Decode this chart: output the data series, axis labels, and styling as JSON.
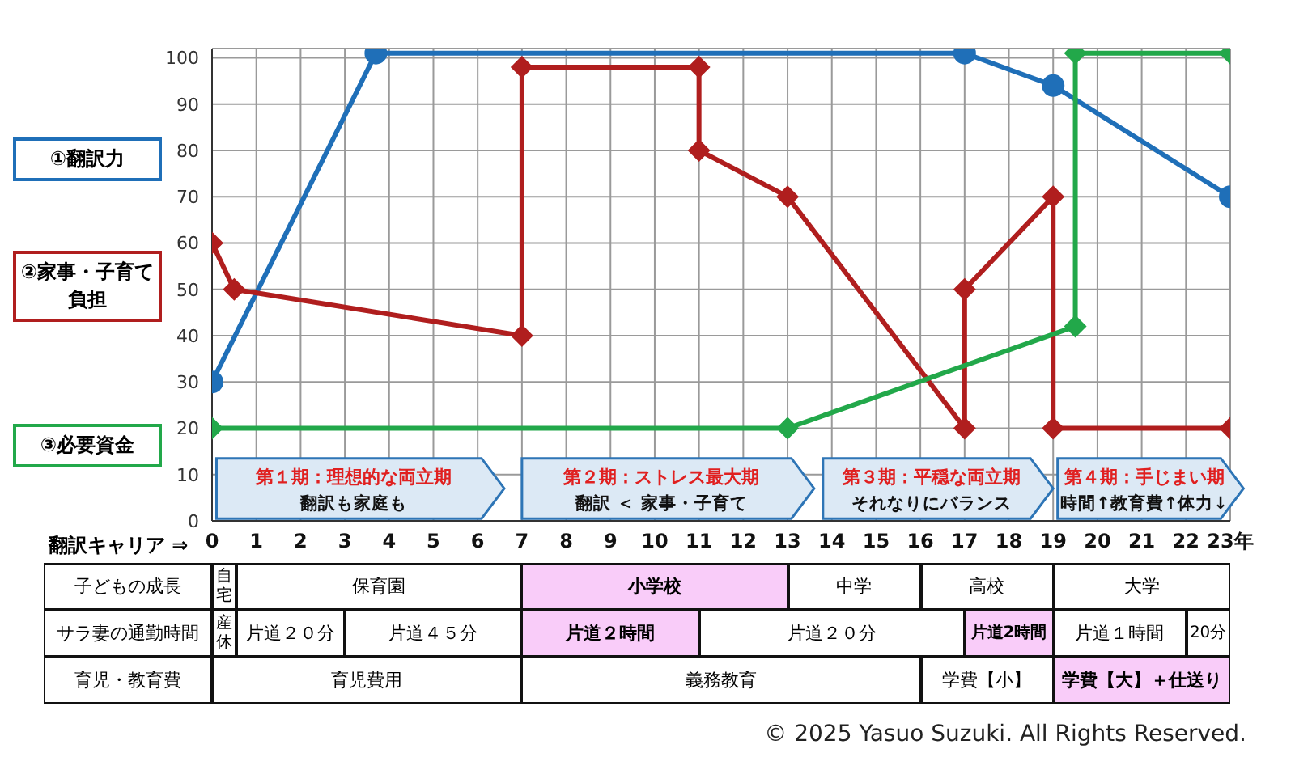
{
  "chart_data": {
    "type": "line",
    "xlabel": "翻訳キャリア ⇒",
    "xlim": [
      0,
      23
    ],
    "xticks": [
      0,
      1,
      2,
      3,
      4,
      5,
      6,
      7,
      8,
      9,
      10,
      11,
      12,
      13,
      14,
      15,
      16,
      17,
      18,
      19,
      20,
      21,
      22,
      {
        "value": 23,
        "label": "23年"
      }
    ],
    "ylim": [
      0,
      102
    ],
    "yticks": [
      0,
      10,
      20,
      30,
      40,
      50,
      60,
      70,
      80,
      90,
      100
    ],
    "grid": true,
    "legend": false,
    "line_style": "solid",
    "series": [
      {
        "name": "①翻訳力",
        "color": "#1f6fb8",
        "marker": "circle",
        "x": [
          0,
          3.7,
          17,
          19,
          23
        ],
        "values": [
          30,
          101,
          101,
          94,
          70
        ]
      },
      {
        "name": "②家事・子育て負担",
        "color": "#b01e1e",
        "marker": "diamond",
        "x": [
          0,
          0.5,
          7,
          7,
          11,
          11,
          13,
          17,
          17,
          19,
          19,
          23
        ],
        "values": [
          60,
          50,
          40,
          98,
          98,
          80,
          70,
          20,
          50,
          70,
          20,
          20
        ]
      },
      {
        "name": "③必要資金",
        "color": "#22a84a",
        "marker": "diamond",
        "x": [
          0,
          13,
          19.5,
          19.5,
          23
        ],
        "values": [
          20,
          20,
          42,
          101,
          101
        ]
      }
    ],
    "bands": [
      {
        "axis": "x",
        "from": 0.1,
        "to": 6.6,
        "label": "第１期：理想的な両立期",
        "color": "#dce9f5"
      },
      {
        "axis": "x",
        "from": 7,
        "to": 13.6,
        "label": "第２期：ストレス最大期",
        "color": "#dce9f5"
      },
      {
        "axis": "x",
        "from": 13.8,
        "to": 19,
        "label": "第３期：平穏な両立期",
        "color": "#dce9f5"
      },
      {
        "axis": "x",
        "from": 19.1,
        "to": 23.3,
        "label": "第４期：手じまい期",
        "color": "#dce9f5"
      }
    ],
    "annotations": [
      "翻訳も家庭も",
      "翻訳 ＜ 家事・子育て",
      "それなりにバランス",
      "時間↑教育費↑体力↓",
      "子どもの成長",
      "自宅",
      "保育園",
      "小学校",
      "中学",
      "高校",
      "大学",
      "サラ妻の通勤時間",
      "産休",
      "片道２０分",
      "片道４５分",
      "片道２時間",
      "片道２０分",
      "片道2時間",
      "片道１時間",
      "20分",
      "育児・教育費",
      "育児費用",
      "義務教育",
      "学費【小】",
      "学費【大】＋仕送り",
      "© 2025  Yasuo Suzuki. All Rights Reserved."
    ]
  }
}
